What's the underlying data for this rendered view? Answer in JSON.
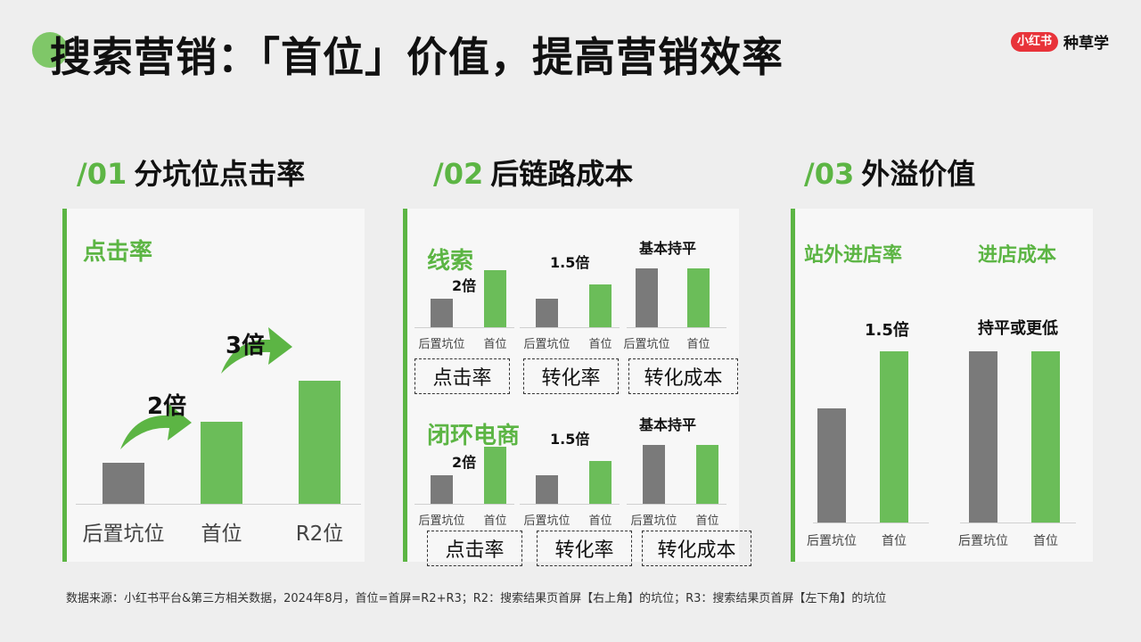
{
  "page_title": "搜索营销：「首位」价值，提高营销效率",
  "logo": {
    "badge": "小红书",
    "text": "种草学"
  },
  "colors": {
    "green": "#5cb544",
    "bar_green": "#6bbd59",
    "bar_gray": "#7a7a7a",
    "logo_red": "#e8333a"
  },
  "sections": [
    {
      "num": "/01",
      "title": "分坑位点击率"
    },
    {
      "num": "/02",
      "title": "后链路成本"
    },
    {
      "num": "/03",
      "title": "外溢价值"
    }
  ],
  "footnote": "数据来源：小红书平台&第三方相关数据，2024年8月，首位=首屏=R2+R3；R2：搜索结果页首屏【右上角】的坑位；R3：搜索结果页首屏【左下角】的坑位",
  "chart_data": [
    {
      "type": "bar",
      "panel": "/01",
      "title": "点击率",
      "categories": [
        "后置坑位",
        "首位",
        "R2位"
      ],
      "values": [
        1,
        2,
        3
      ],
      "annotations": [
        "",
        "2倍",
        "3倍"
      ]
    },
    {
      "type": "bar",
      "panel": "/02",
      "group": "线索",
      "subcharts": [
        {
          "metric": "点击率",
          "categories": [
            "后置坑位",
            "首位"
          ],
          "values": [
            1,
            2
          ],
          "annotation": "2倍"
        },
        {
          "metric": "转化率",
          "categories": [
            "后置坑位",
            "首位"
          ],
          "values": [
            1,
            1.5
          ],
          "annotation": "1.5倍"
        },
        {
          "metric": "转化成本",
          "categories": [
            "后置坑位",
            "首位"
          ],
          "values": [
            1,
            1
          ],
          "annotation": "基本持平"
        }
      ]
    },
    {
      "type": "bar",
      "panel": "/02",
      "group": "闭环电商",
      "subcharts": [
        {
          "metric": "点击率",
          "categories": [
            "后置坑位",
            "首位"
          ],
          "values": [
            1,
            2
          ],
          "annotation": "2倍"
        },
        {
          "metric": "转化率",
          "categories": [
            "后置坑位",
            "首位"
          ],
          "values": [
            1,
            1.5
          ],
          "annotation": "1.5倍"
        },
        {
          "metric": "转化成本",
          "categories": [
            "后置坑位",
            "首位"
          ],
          "values": [
            1,
            1
          ],
          "annotation": "基本持平"
        }
      ]
    },
    {
      "type": "bar",
      "panel": "/03",
      "subcharts": [
        {
          "metric": "站外进店率",
          "categories": [
            "后置坑位",
            "首位"
          ],
          "values": [
            1,
            1.5
          ],
          "annotation": "1.5倍"
        },
        {
          "metric": "进店成本",
          "categories": [
            "后置坑位",
            "首位"
          ],
          "values": [
            1,
            1
          ],
          "annotation": "持平或更低"
        }
      ]
    }
  ]
}
